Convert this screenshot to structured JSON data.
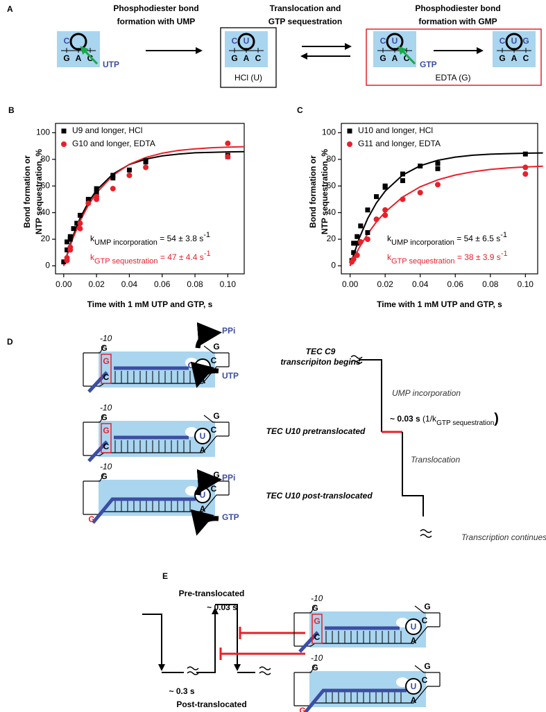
{
  "chart_data": [
    {
      "type": "scatter",
      "panel": "B",
      "ylabel": [
        "Bond formation or",
        "NTP sequestration, %"
      ],
      "xlabel": "Time with 1 mM UTP and GTP, s",
      "xlim": [
        -0.005,
        0.11
      ],
      "ylim": [
        -6,
        107
      ],
      "xticks": [
        {
          "value": 0,
          "label": "0.00"
        },
        {
          "value": 0.02,
          "label": "0.02"
        },
        {
          "value": 0.04,
          "label": "0.04"
        },
        {
          "value": 0.06,
          "label": "0.06"
        },
        {
          "value": 0.08,
          "label": "0.08"
        },
        {
          "value": 0.1,
          "label": "0.10"
        }
      ],
      "yticks": [
        0,
        20,
        40,
        60,
        80,
        100
      ],
      "legend": "upper left",
      "series": [
        {
          "name": "U9 and longer, HCl",
          "color": "#000000",
          "marker": "square",
          "x": [
            0,
            0.002,
            0.002,
            0.004,
            0.004,
            0.006,
            0.008,
            0.01,
            0.015,
            0.02,
            0.02,
            0.03,
            0.03,
            0.04,
            0.05,
            0.05,
            0.1,
            0.1
          ],
          "values": [
            3,
            12,
            18,
            20,
            22,
            28,
            32,
            38,
            50,
            58,
            55,
            68,
            66,
            72,
            79,
            78,
            82,
            83
          ]
        },
        {
          "name": "G10 and longer, EDTA",
          "color": "#e8202a",
          "marker": "circle",
          "x": [
            0.002,
            0.002,
            0.004,
            0.004,
            0.01,
            0.01,
            0.015,
            0.02,
            0.02,
            0.03,
            0.04,
            0.05,
            0.1,
            0.1
          ],
          "values": [
            4,
            6,
            12,
            14,
            28,
            32,
            47,
            52,
            50,
            58,
            68,
            74,
            92,
            82
          ]
        }
      ],
      "fits": [
        {
          "color": "#000000",
          "x": [
            0,
            0.005,
            0.01,
            0.015,
            0.02,
            0.03,
            0.04,
            0.05,
            0.06,
            0.07,
            0.08,
            0.09,
            0.1,
            0.11
          ],
          "values": [
            0,
            20.3,
            35.9,
            47.7,
            56.8,
            69.0,
            76.1,
            80.2,
            82.6,
            84.0,
            84.9,
            85.3,
            85.6,
            85.8
          ]
        },
        {
          "color": "#e8202a",
          "x": [
            0,
            0.005,
            0.01,
            0.015,
            0.02,
            0.03,
            0.04,
            0.05,
            0.06,
            0.07,
            0.08,
            0.09,
            0.1,
            0.11
          ],
          "values": [
            0,
            18.8,
            33.8,
            45.5,
            54.8,
            68.0,
            76.3,
            81.4,
            84.6,
            86.7,
            87.9,
            88.7,
            89.2,
            89.5
          ]
        }
      ],
      "annotations": [
        {
          "k": "k",
          "sub": "UMP incorporation",
          "rest": " = 54 ± 3.8 s",
          "sup": "-1",
          "color": "#000000"
        },
        {
          "k": "k",
          "sub": "GTP sequestration",
          "rest": " = 47 ± 4.4 s",
          "sup": "-1",
          "color": "#e8202a"
        }
      ]
    },
    {
      "type": "scatter",
      "panel": "C",
      "ylabel": [
        "Bond formation or",
        "NTP sequestration, %"
      ],
      "xlabel": "Time with 1 mM UTP and GTP, s",
      "xlim": [
        -0.005,
        0.107
      ],
      "ylim": [
        -6,
        107
      ],
      "xticks": [
        {
          "value": 0,
          "label": "0.00"
        },
        {
          "value": 0.02,
          "label": "0.02"
        },
        {
          "value": 0.04,
          "label": "0.04"
        },
        {
          "value": 0.06,
          "label": "0.06"
        },
        {
          "value": 0.08,
          "label": "0.08"
        },
        {
          "value": 0.1,
          "label": "0.10"
        }
      ],
      "yticks": [
        0,
        20,
        40,
        60,
        80,
        100
      ],
      "legend": "upper left",
      "series": [
        {
          "name": "U10 and longer, HCl",
          "color": "#000000",
          "marker": "square",
          "x": [
            0.001,
            0.002,
            0.002,
            0.004,
            0.004,
            0.006,
            0.01,
            0.01,
            0.015,
            0.02,
            0.02,
            0.03,
            0.03,
            0.04,
            0.05,
            0.05,
            0.1
          ],
          "values": [
            4,
            10,
            17,
            17,
            22,
            30,
            42,
            25,
            52,
            59,
            60,
            69,
            64,
            75,
            77,
            73,
            84
          ]
        },
        {
          "name": "G11 and longer,  EDTA",
          "color": "#e8202a",
          "marker": "circle",
          "x": [
            0.001,
            0.002,
            0.004,
            0.006,
            0.01,
            0.015,
            0.02,
            0.02,
            0.03,
            0.04,
            0.05,
            0.1,
            0.1
          ],
          "values": [
            3,
            5,
            8,
            18,
            20,
            35,
            42,
            38,
            50,
            55,
            61,
            74,
            69
          ]
        }
      ],
      "fits": [
        {
          "color": "#000000",
          "x": [
            0,
            0.005,
            0.01,
            0.015,
            0.02,
            0.03,
            0.04,
            0.05,
            0.06,
            0.07,
            0.08,
            0.09,
            0.1,
            0.11
          ],
          "values": [
            0,
            20.1,
            35.5,
            47.2,
            56.1,
            68.2,
            75.2,
            79.3,
            81.7,
            83.1,
            83.9,
            84.3,
            84.6,
            84.8
          ]
        },
        {
          "color": "#e8202a",
          "x": [
            0,
            0.005,
            0.01,
            0.015,
            0.02,
            0.03,
            0.04,
            0.05,
            0.06,
            0.07,
            0.08,
            0.09,
            0.1,
            0.11
          ],
          "values": [
            0,
            13.2,
            24.0,
            33.0,
            40.4,
            51.7,
            59.4,
            64.6,
            68.2,
            70.7,
            72.4,
            73.5,
            74.3,
            74.8
          ]
        }
      ],
      "annotations": [
        {
          "k": "k",
          "sub": "UMP incorporation",
          "rest": " = 54 ± 6.5 s",
          "sup": "-1",
          "color": "#000000"
        },
        {
          "k": "k",
          "sub": "GTP sequestration",
          "rest": " = 38 ± 3.9 s",
          "sup": "-1",
          "color": "#e8202a"
        }
      ]
    }
  ],
  "panel_a": {
    "label": "A",
    "captions": [
      [
        "Phosphodiester bond",
        "formation with UMP"
      ],
      [
        "Translocation and",
        "GTP sequestration"
      ],
      [
        "Phosphodiester bond",
        "formation with GMP"
      ]
    ],
    "complexes": [
      {
        "top": [
          "C"
        ],
        "bottom": [
          "G",
          "A",
          "C"
        ]
      },
      {
        "top": [
          "C",
          "U"
        ],
        "bottom": [
          "G",
          "A",
          "C"
        ]
      },
      {
        "top": [
          "C",
          "U"
        ],
        "bottom": [
          "G",
          "A",
          "C"
        ]
      },
      {
        "top": [
          "C",
          "U",
          "G"
        ],
        "bottom": [
          "G",
          "A",
          "C"
        ]
      }
    ],
    "ntps": [
      "UTP",
      "GTP"
    ],
    "boxes": [
      "HCl (U)",
      "EDTA (G)"
    ]
  },
  "panel_d": {
    "label": "D",
    "tecs": [
      {
        "minus10": "-10",
        "letters": [
          "G",
          "G",
          "C",
          "G",
          "C",
          "A"
        ],
        "rna_end": "C"
      },
      {
        "minus10": "-10",
        "letters": [
          "G",
          "G",
          "C",
          "G",
          "C",
          "A"
        ],
        "circled": "U"
      },
      {
        "minus10": "-10",
        "letters": [
          "G",
          "G",
          "G",
          "C",
          "A"
        ],
        "circled": "U"
      }
    ],
    "ppi": [
      "PPi",
      "PPi"
    ],
    "ntps": [
      "UTP",
      "GTP"
    ],
    "states": [
      [
        "TEC C9",
        "transcripiton begins"
      ],
      [
        "TEC U10 pretranslocated"
      ],
      [
        "TEC U10 post-translocated"
      ]
    ],
    "steps": [
      "UMP incorporation",
      "Translocation",
      "Transcription continues"
    ],
    "rate": {
      "main": "~ 0.03 s ",
      "open": "(1/k",
      "sub": "GTP sequestration",
      "close": ")"
    }
  },
  "panel_e": {
    "label": "E",
    "pre": "Pre-translocated",
    "pre_time": "~ 0.03 s",
    "post": "Post-translocated",
    "post_time": "~ 0.3 s",
    "tecs": [
      {
        "minus10": "-10",
        "letters": [
          "G",
          "G",
          "C",
          "G",
          "C",
          "A"
        ],
        "circled": "U"
      },
      {
        "minus10": "-10",
        "letters": [
          "G",
          "G",
          "G",
          "C",
          "A"
        ],
        "circled": "U"
      }
    ]
  }
}
